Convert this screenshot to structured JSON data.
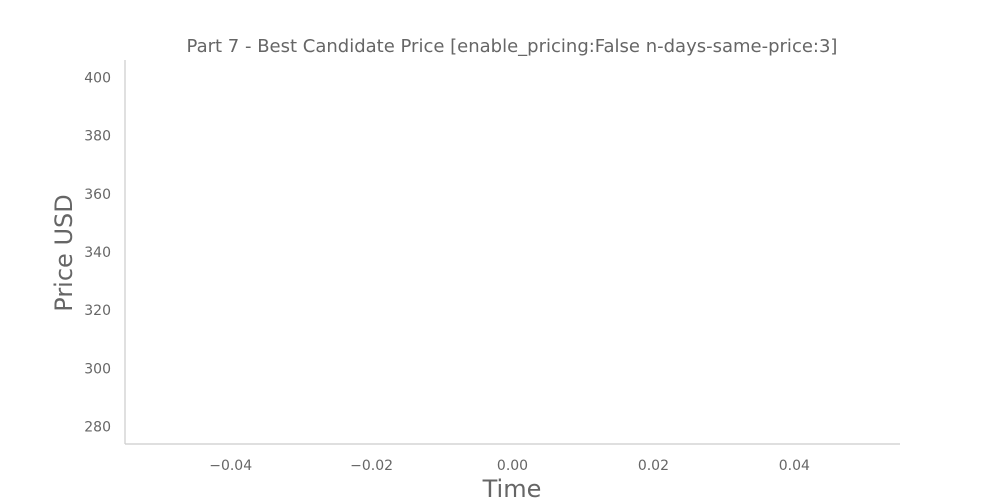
{
  "chart_data": {
    "type": "line",
    "title": "Part 7 - Best Candidate Price [enable_pricing:False n-days-same-price:3]",
    "xlabel": "Time",
    "ylabel": "Price USD",
    "xlim": [
      -0.055,
      0.055
    ],
    "ylim": [
      274,
      406
    ],
    "xticks": [
      -0.04,
      -0.02,
      0.0,
      0.02,
      0.04
    ],
    "xtick_labels": [
      "−0.04",
      "−0.02",
      "0.00",
      "0.02",
      "0.04"
    ],
    "yticks": [
      280,
      300,
      320,
      340,
      360,
      380,
      400
    ],
    "ytick_labels": [
      "280",
      "300",
      "320",
      "340",
      "360",
      "380",
      "400"
    ],
    "grid": false,
    "series": [
      {
        "x": [],
        "y": []
      }
    ],
    "colors": {
      "axis": "#cccccc",
      "text": "#666666"
    }
  }
}
